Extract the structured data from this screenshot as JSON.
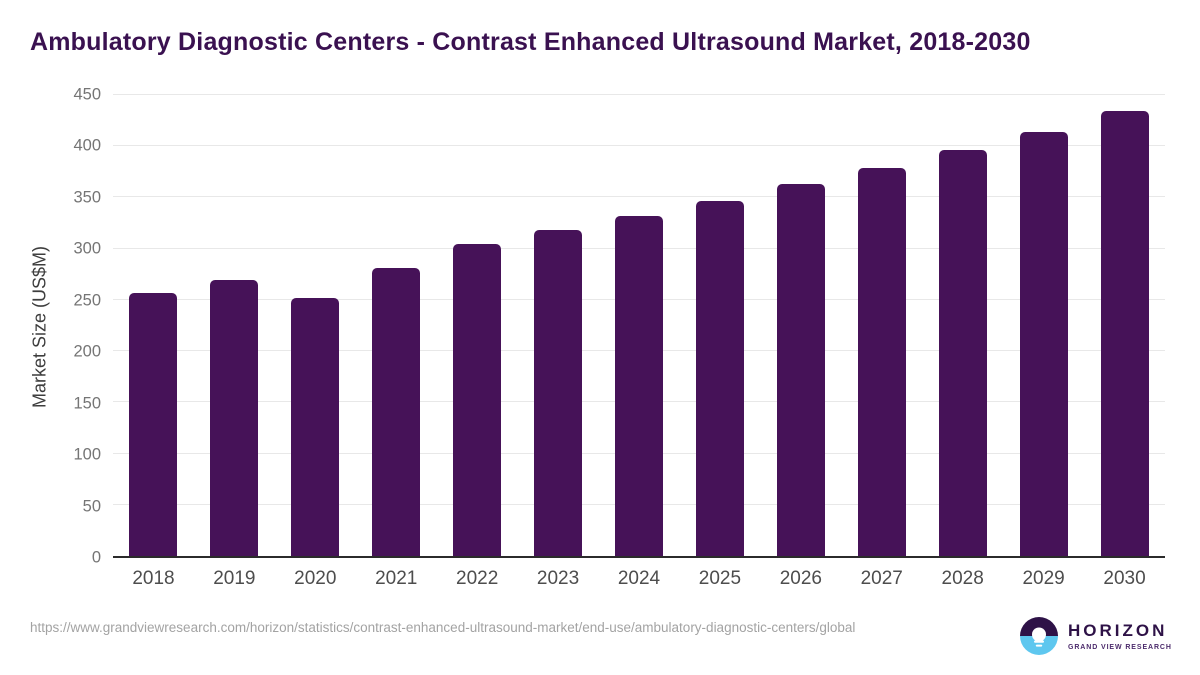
{
  "header": {
    "title": "Ambulatory Diagnostic Centers - Contrast Enhanced Ultrasound Market, 2018-2030"
  },
  "chart_data": {
    "type": "bar",
    "title": "Ambulatory Diagnostic Centers - Contrast Enhanced Ultrasound Market, 2018-2030",
    "categories": [
      "2018",
      "2019",
      "2020",
      "2021",
      "2022",
      "2023",
      "2024",
      "2025",
      "2026",
      "2027",
      "2028",
      "2029",
      "2030"
    ],
    "values": [
      257,
      269,
      252,
      281,
      305,
      318,
      332,
      347,
      363,
      379,
      396,
      414,
      434
    ],
    "xlabel": "",
    "ylabel": "Market Size (US$M)",
    "ylim": [
      0,
      450
    ],
    "yticks": [
      0,
      50,
      100,
      150,
      200,
      250,
      300,
      350,
      400,
      450
    ],
    "grid": "horizontal",
    "legend": "none"
  },
  "footer": {
    "source_url": "https://www.grandviewresearch.com/horizon/statistics/contrast-enhanced-ultrasound-market/end-use/ambulatory-diagnostic-centers/global",
    "logo": {
      "brand": "HORIZON",
      "tagline": "GRAND VIEW RESEARCH"
    }
  },
  "colors": {
    "bar": "#461258",
    "title": "#3a1150",
    "axis_label": "#3d3d3d",
    "y_tick": "#757575",
    "x_tick": "#4d4d4d",
    "grid": "#e8e8e8",
    "baseline": "#2b2b2b",
    "url": "#a3a3a3",
    "logo_dark": "#2e1247",
    "logo_blue": "#5ec7ef",
    "logo_tagline": "#4b2a6b"
  }
}
